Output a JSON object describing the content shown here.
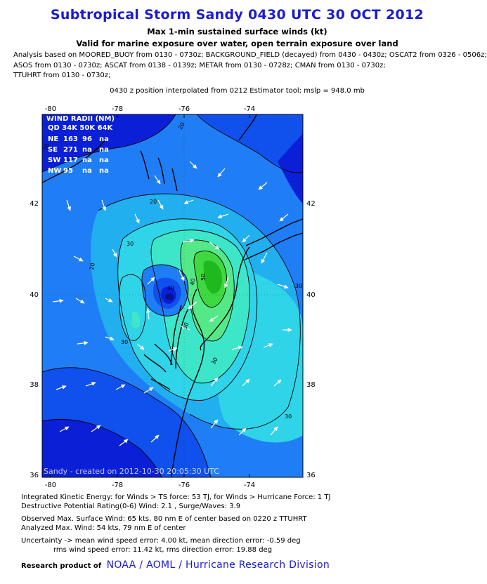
{
  "header": {
    "title": "Subtropical Storm Sandy 0430 UTC 30 OCT 2012",
    "subtitle1": "Max 1-min sustained surface winds (kt)",
    "subtitle2": "Valid for marine exposure over water, open terrain exposure over land",
    "sources": [
      "Analysis based on MOORED_BUOY from 0130 - 0730z; BACKGROUND_FIELD (decayed) from 0430 - 0430z; OSCAT2 from 0326 - 0506z;",
      "ASOS from 0130 - 0730z; ASCAT from 0138 - 0139z; METAR from 0130 - 0728z; CMAN from 0130 - 0730z;",
      "TTUHRT from 0130 - 0730z;"
    ],
    "position_note": "0430 z position interpolated from 0212 Estimator tool; mslp = 948.0 mb"
  },
  "map": {
    "lon_ticks": [
      "-80",
      "-78",
      "-76",
      "-74"
    ],
    "lat_ticks": [
      "42",
      "40",
      "38",
      "36"
    ],
    "watermark": "Sandy - created on 2012-10-30 20:05:30 UTC",
    "contour_labels": [
      "20",
      "20",
      "20",
      "20",
      "30",
      "30",
      "30",
      "40",
      "40",
      "50",
      "30",
      "30",
      "30",
      "20"
    ],
    "wind_radii": {
      "title": "WIND RADII (NM)",
      "header": "QD 34K 50K 64K",
      "rows": [
        {
          "quad": "NE",
          "k34": "163",
          "k50": "96",
          "k64": "na"
        },
        {
          "quad": "SE",
          "k34": "271",
          "k50": "na",
          "k64": "na"
        },
        {
          "quad": "SW",
          "k34": "117",
          "k50": "na",
          "k64": "na"
        },
        {
          "quad": "NW",
          "k34": "95",
          "k50": "na",
          "k64": "na"
        }
      ]
    },
    "colors": {
      "deep_blue": "#0a1fd6",
      "blue": "#1050ec",
      "mid_blue": "#1f7ef5",
      "light_blue": "#22aff0",
      "cyan": "#2fd4e8",
      "aqua": "#3de6c8",
      "green": "#55e888",
      "bright_green": "#3fd840",
      "dark_green": "#1fb81f",
      "center": "#08128a"
    }
  },
  "stats": {
    "ike_line": "Integrated Kinetic Energy: for Winds > TS force: 53 TJ, for Winds > Hurricane Force: 1 TJ",
    "dpr_line": "Destructive Potential Rating(0-6)  Wind: 2.1 , Surge/Waves: 3.9",
    "obs_line": "Observed Max. Surface Wind: 65 kts, 80 nm E of center based on 0220 z TTUHRT",
    "analyzed_line": "Analyzed Max. Wind: 54 kts, 79 nm  E of center",
    "uncert_line1": "Uncertainty -> mean wind speed error: 4.00 kt, mean direction error:  -0.59 deg",
    "uncert_line2": "rms wind speed error: 11.42 kt, rms direction error: 19.88 deg"
  },
  "footer": {
    "label": "Research product of",
    "org": "NOAA / AOML / Hurricane Research Division"
  }
}
